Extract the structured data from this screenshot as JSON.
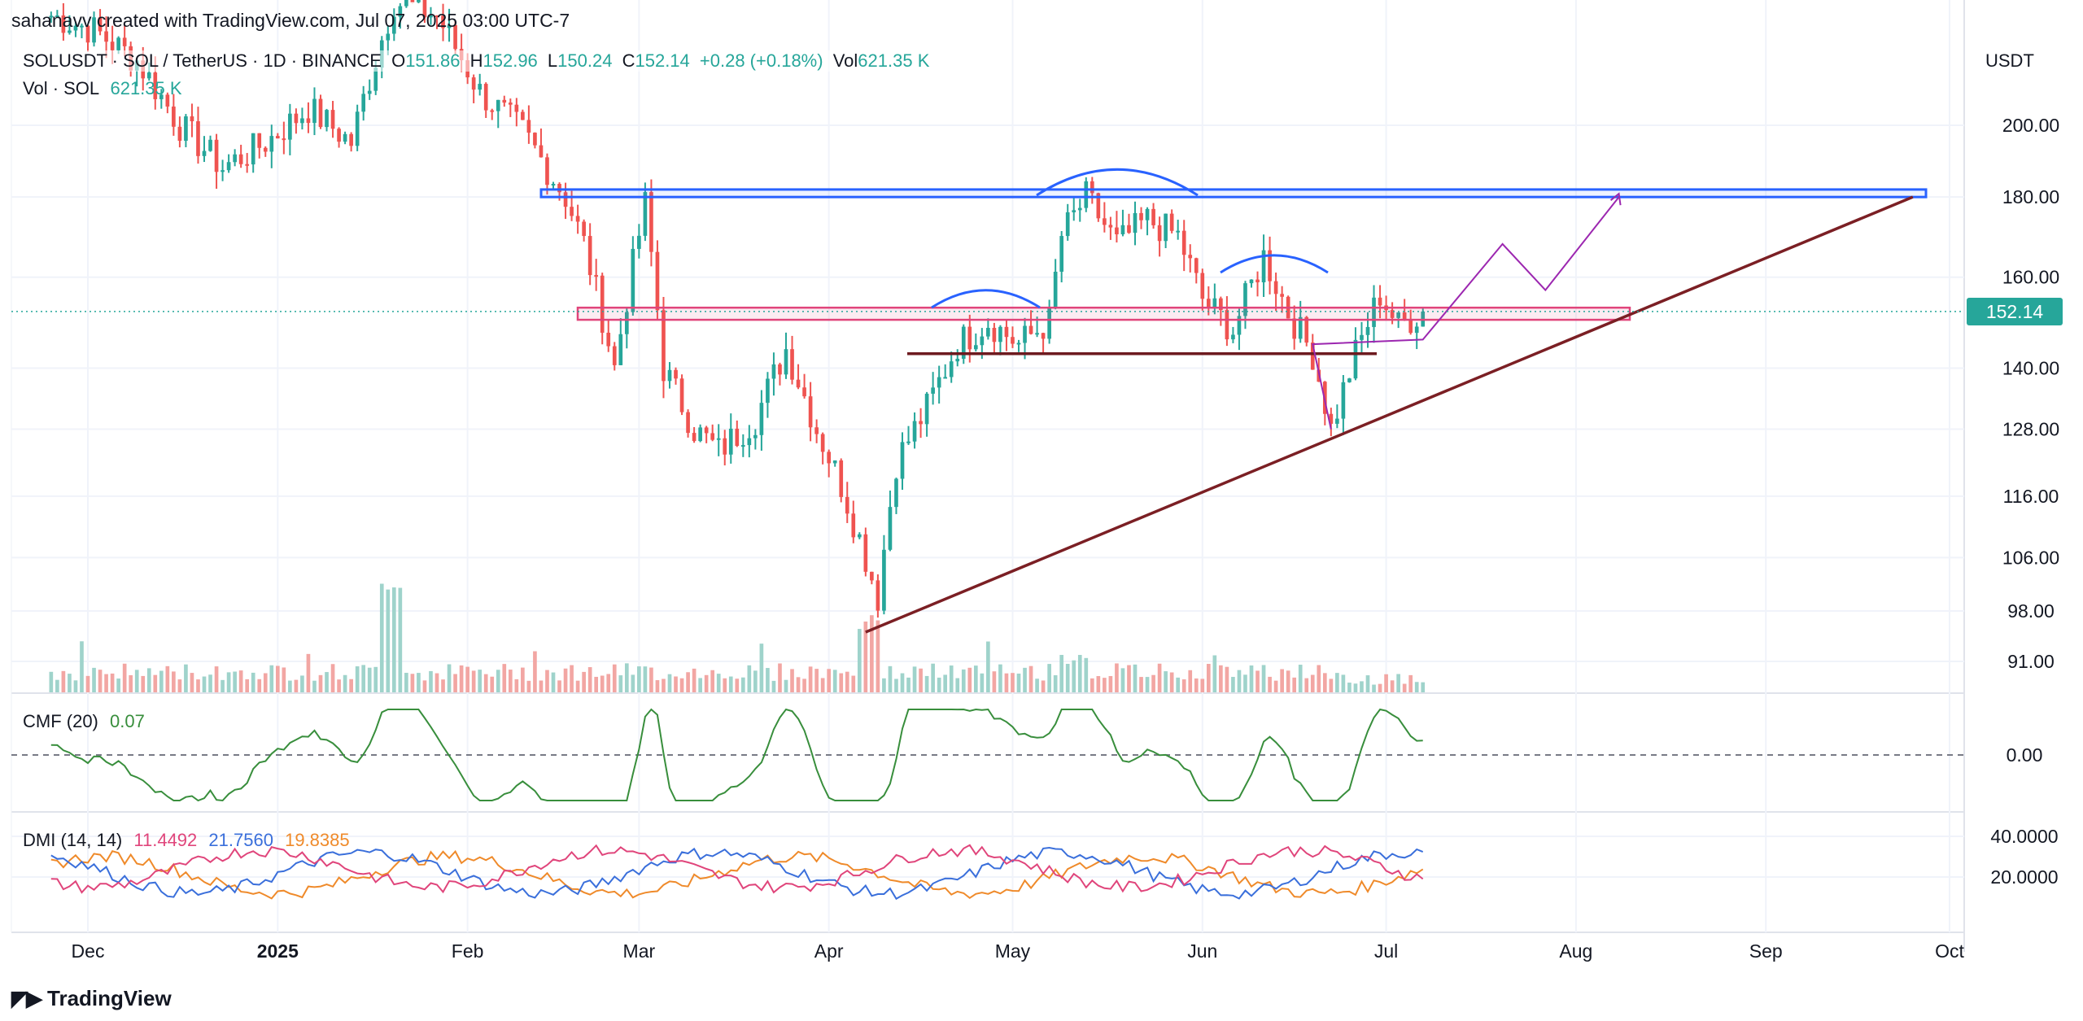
{
  "author_line": "sahanavv created with TradingView.com, Jul 07, 2025 03:00 UTC-7",
  "symbol": {
    "name": "SOLUSDT · SOL / TetherUS · 1D · BINANCE",
    "o_label": "O",
    "o_value": "151.86",
    "h_label": "H",
    "h_value": "152.96",
    "l_label": "L",
    "l_value": "150.24",
    "c_label": "C",
    "c_value": "152.14",
    "change": "+0.28 (+0.18%)",
    "vol_label": "Vol",
    "vol_value": "621.35 K"
  },
  "volume_row": {
    "label": "Vol · SOL",
    "value": "621.35 K"
  },
  "cmf": {
    "label": "CMF (20)",
    "value": "0.07"
  },
  "dmi": {
    "label": "DMI (14, 14)",
    "plus": "11.4492",
    "minus": "21.7560",
    "adx": "19.8385"
  },
  "currency_label": "USDT",
  "last_price": "152.14",
  "logo_text": "TradingView",
  "colors": {
    "up": "#26a69a",
    "down": "#ef5350",
    "vol_up": "#9fd3cb",
    "vol_down": "#f2a6a3",
    "resistance": "#2962ff",
    "support_zone": "#e0457b",
    "trendline": "#7b1f24",
    "neckline": "#6d1a1f",
    "projection": "#9c27b0",
    "cmf": "#388e3c",
    "dmi_plus": "#e0457b",
    "dmi_minus": "#3a6fdb",
    "adx": "#ef8a2a"
  },
  "chart_data": {
    "type": "candlestick",
    "x_ticks": [
      "Dec",
      "2025",
      "Feb",
      "Mar",
      "Apr",
      "May",
      "Jun",
      "Jul",
      "Aug",
      "Sep",
      "Oct"
    ],
    "y_ticks": [
      "200.00",
      "180.00",
      "160.00",
      "140.00",
      "128.00",
      "116.00",
      "106.00",
      "98.00",
      "91.00"
    ],
    "y_scale": "log",
    "cmf_ticks": [
      "0.00"
    ],
    "dmi_ticks": [
      "40.0000",
      "20.0000"
    ],
    "price_path": [
      [
        "2024-11-25",
        235
      ],
      [
        "2024-12-02",
        230
      ],
      [
        "2024-12-09",
        220
      ],
      [
        "2024-12-16",
        200
      ],
      [
        "2024-12-23",
        188
      ],
      [
        "2024-12-30",
        195
      ],
      [
        "2025-01-06",
        205
      ],
      [
        "2025-01-13",
        195
      ],
      [
        "2025-01-20",
        240
      ],
      [
        "2025-01-27",
        235
      ],
      [
        "2025-02-03",
        210
      ],
      [
        "2025-02-10",
        198
      ],
      [
        "2025-02-17",
        180
      ],
      [
        "2025-02-20",
        168
      ],
      [
        "2025-02-25",
        140
      ],
      [
        "2025-03-02",
        178
      ],
      [
        "2025-03-05",
        140
      ],
      [
        "2025-03-10",
        128
      ],
      [
        "2025-03-14",
        124
      ],
      [
        "2025-03-20",
        130
      ],
      [
        "2025-03-25",
        144
      ],
      [
        "2025-03-30",
        128
      ],
      [
        "2025-04-03",
        118
      ],
      [
        "2025-04-07",
        106
      ],
      [
        "2025-04-09",
        100
      ],
      [
        "2025-04-12",
        122
      ],
      [
        "2025-04-17",
        132
      ],
      [
        "2025-04-22",
        145
      ],
      [
        "2025-04-27",
        150
      ],
      [
        "2025-05-02",
        145
      ],
      [
        "2025-05-07",
        150
      ],
      [
        "2025-05-09",
        170
      ],
      [
        "2025-05-13",
        180
      ],
      [
        "2025-05-18",
        168
      ],
      [
        "2025-05-23",
        174
      ],
      [
        "2025-05-28",
        170
      ],
      [
        "2025-06-01",
        155
      ],
      [
        "2025-06-06",
        148
      ],
      [
        "2025-06-11",
        165
      ],
      [
        "2025-06-15",
        152
      ],
      [
        "2025-06-19",
        143
      ],
      [
        "2025-06-22",
        128
      ],
      [
        "2025-06-26",
        143
      ],
      [
        "2025-06-30",
        156
      ],
      [
        "2025-07-03",
        149
      ],
      [
        "2025-07-07",
        152.14
      ]
    ],
    "annotations": {
      "resistance_zone": [
        180,
        182
      ],
      "support_zone": [
        150.3,
        153
      ],
      "neckline": 143,
      "ascending_trendline": [
        [
          "2025-04-07",
          95
        ],
        [
          "2025-09-25",
          180
        ]
      ],
      "projection_path": [
        [
          "2025-06-22",
          128
        ],
        [
          "2025-06-19",
          145
        ],
        [
          "2025-07-07",
          146
        ],
        [
          "2025-07-20",
          168
        ],
        [
          "2025-07-27",
          157
        ],
        [
          "2025-08-08",
          180
        ]
      ]
    }
  }
}
